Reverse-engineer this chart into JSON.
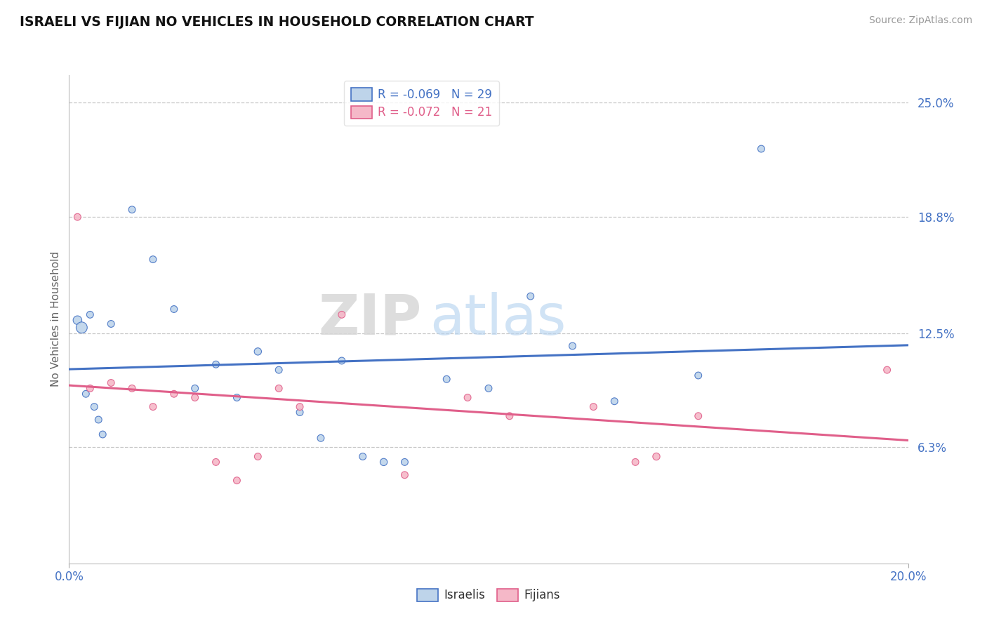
{
  "title": "ISRAELI VS FIJIAN NO VEHICLES IN HOUSEHOLD CORRELATION CHART",
  "source": "Source: ZipAtlas.com",
  "ylabel": "No Vehicles in Household",
  "xlim": [
    0.0,
    20.0
  ],
  "ylim": [
    0.0,
    26.5
  ],
  "xtick_labels": [
    "0.0%",
    "20.0%"
  ],
  "xtick_vals": [
    0.0,
    20.0
  ],
  "ytick_labels": [
    "6.3%",
    "12.5%",
    "18.8%",
    "25.0%"
  ],
  "ytick_vals": [
    6.3,
    12.5,
    18.8,
    25.0
  ],
  "israeli_color": "#bed4ea",
  "fijian_color": "#f5b8c8",
  "israeli_line_color": "#4472c4",
  "fijian_line_color": "#e05f8a",
  "legend_label_israeli": "R = -0.069   N = 29",
  "legend_label_fijian": "R = -0.072   N = 21",
  "legend_label_bottom_israeli": "Israelis",
  "legend_label_bottom_fijian": "Fijians",
  "watermark_zip": "ZIP",
  "watermark_atlas": "atlas",
  "background_color": "#ffffff",
  "grid_color": "#c8c8c8",
  "israeli_x": [
    0.2,
    0.5,
    1.0,
    0.3,
    0.4,
    0.6,
    0.7,
    0.8,
    1.5,
    2.0,
    2.5,
    3.0,
    3.5,
    4.0,
    4.5,
    5.0,
    5.5,
    6.0,
    6.5,
    7.0,
    7.5,
    8.0,
    9.0,
    10.0,
    11.0,
    12.0,
    13.0,
    15.0,
    16.5
  ],
  "israeli_y": [
    13.2,
    13.5,
    13.0,
    12.8,
    9.2,
    8.5,
    7.8,
    7.0,
    19.2,
    16.5,
    13.8,
    9.5,
    10.8,
    9.0,
    11.5,
    10.5,
    8.2,
    6.8,
    11.0,
    5.8,
    5.5,
    5.5,
    10.0,
    9.5,
    14.5,
    11.8,
    8.8,
    10.2,
    22.5
  ],
  "israeli_sizes": [
    80,
    50,
    50,
    130,
    50,
    50,
    50,
    50,
    50,
    50,
    50,
    50,
    50,
    50,
    55,
    50,
    50,
    50,
    50,
    50,
    55,
    50,
    50,
    50,
    50,
    50,
    50,
    50,
    50
  ],
  "fijian_x": [
    0.2,
    0.5,
    1.0,
    1.5,
    2.0,
    2.5,
    3.0,
    3.5,
    4.0,
    4.5,
    5.0,
    5.5,
    6.5,
    8.0,
    9.5,
    10.5,
    12.5,
    13.5,
    14.0,
    15.0,
    19.5
  ],
  "fijian_y": [
    18.8,
    9.5,
    9.8,
    9.5,
    8.5,
    9.2,
    9.0,
    5.5,
    4.5,
    5.8,
    9.5,
    8.5,
    13.5,
    4.8,
    9.0,
    8.0,
    8.5,
    5.5,
    5.8,
    8.0,
    10.5
  ],
  "fijian_sizes": [
    50,
    50,
    50,
    50,
    50,
    50,
    50,
    50,
    50,
    50,
    50,
    50,
    50,
    50,
    50,
    50,
    50,
    50,
    55,
    50,
    50
  ]
}
